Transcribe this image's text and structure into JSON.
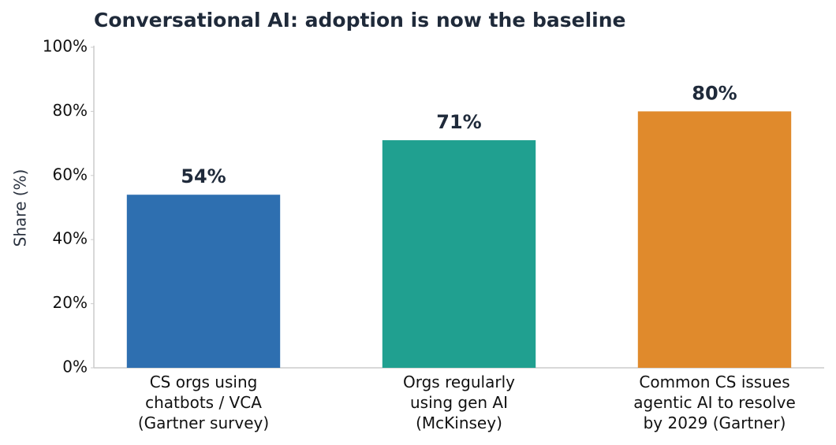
{
  "chart_data": {
    "type": "bar",
    "title": "Conversational AI: adoption is now the baseline",
    "ylabel": "Share (%)",
    "categories": [
      "CS orgs using\nchatbots / VCA\n(Gartner survey)",
      "Orgs regularly\nusing gen AI\n(McKinsey)",
      "Common CS issues\nagentic AI to resolve\nby 2029 (Gartner)"
    ],
    "values": [
      54,
      71,
      80
    ],
    "value_labels": [
      "54%",
      "71%",
      "80%"
    ],
    "colors": [
      "#2e6fb0",
      "#20a090",
      "#e08a2c"
    ],
    "ylim": [
      0,
      100
    ],
    "yticks": [
      {
        "value": 0,
        "label": "0%"
      },
      {
        "value": 20,
        "label": "20%"
      },
      {
        "value": 40,
        "label": "40%"
      },
      {
        "value": 60,
        "label": "60%"
      },
      {
        "value": 80,
        "label": "80%"
      },
      {
        "value": 100,
        "label": "100%"
      }
    ],
    "grid": false
  }
}
